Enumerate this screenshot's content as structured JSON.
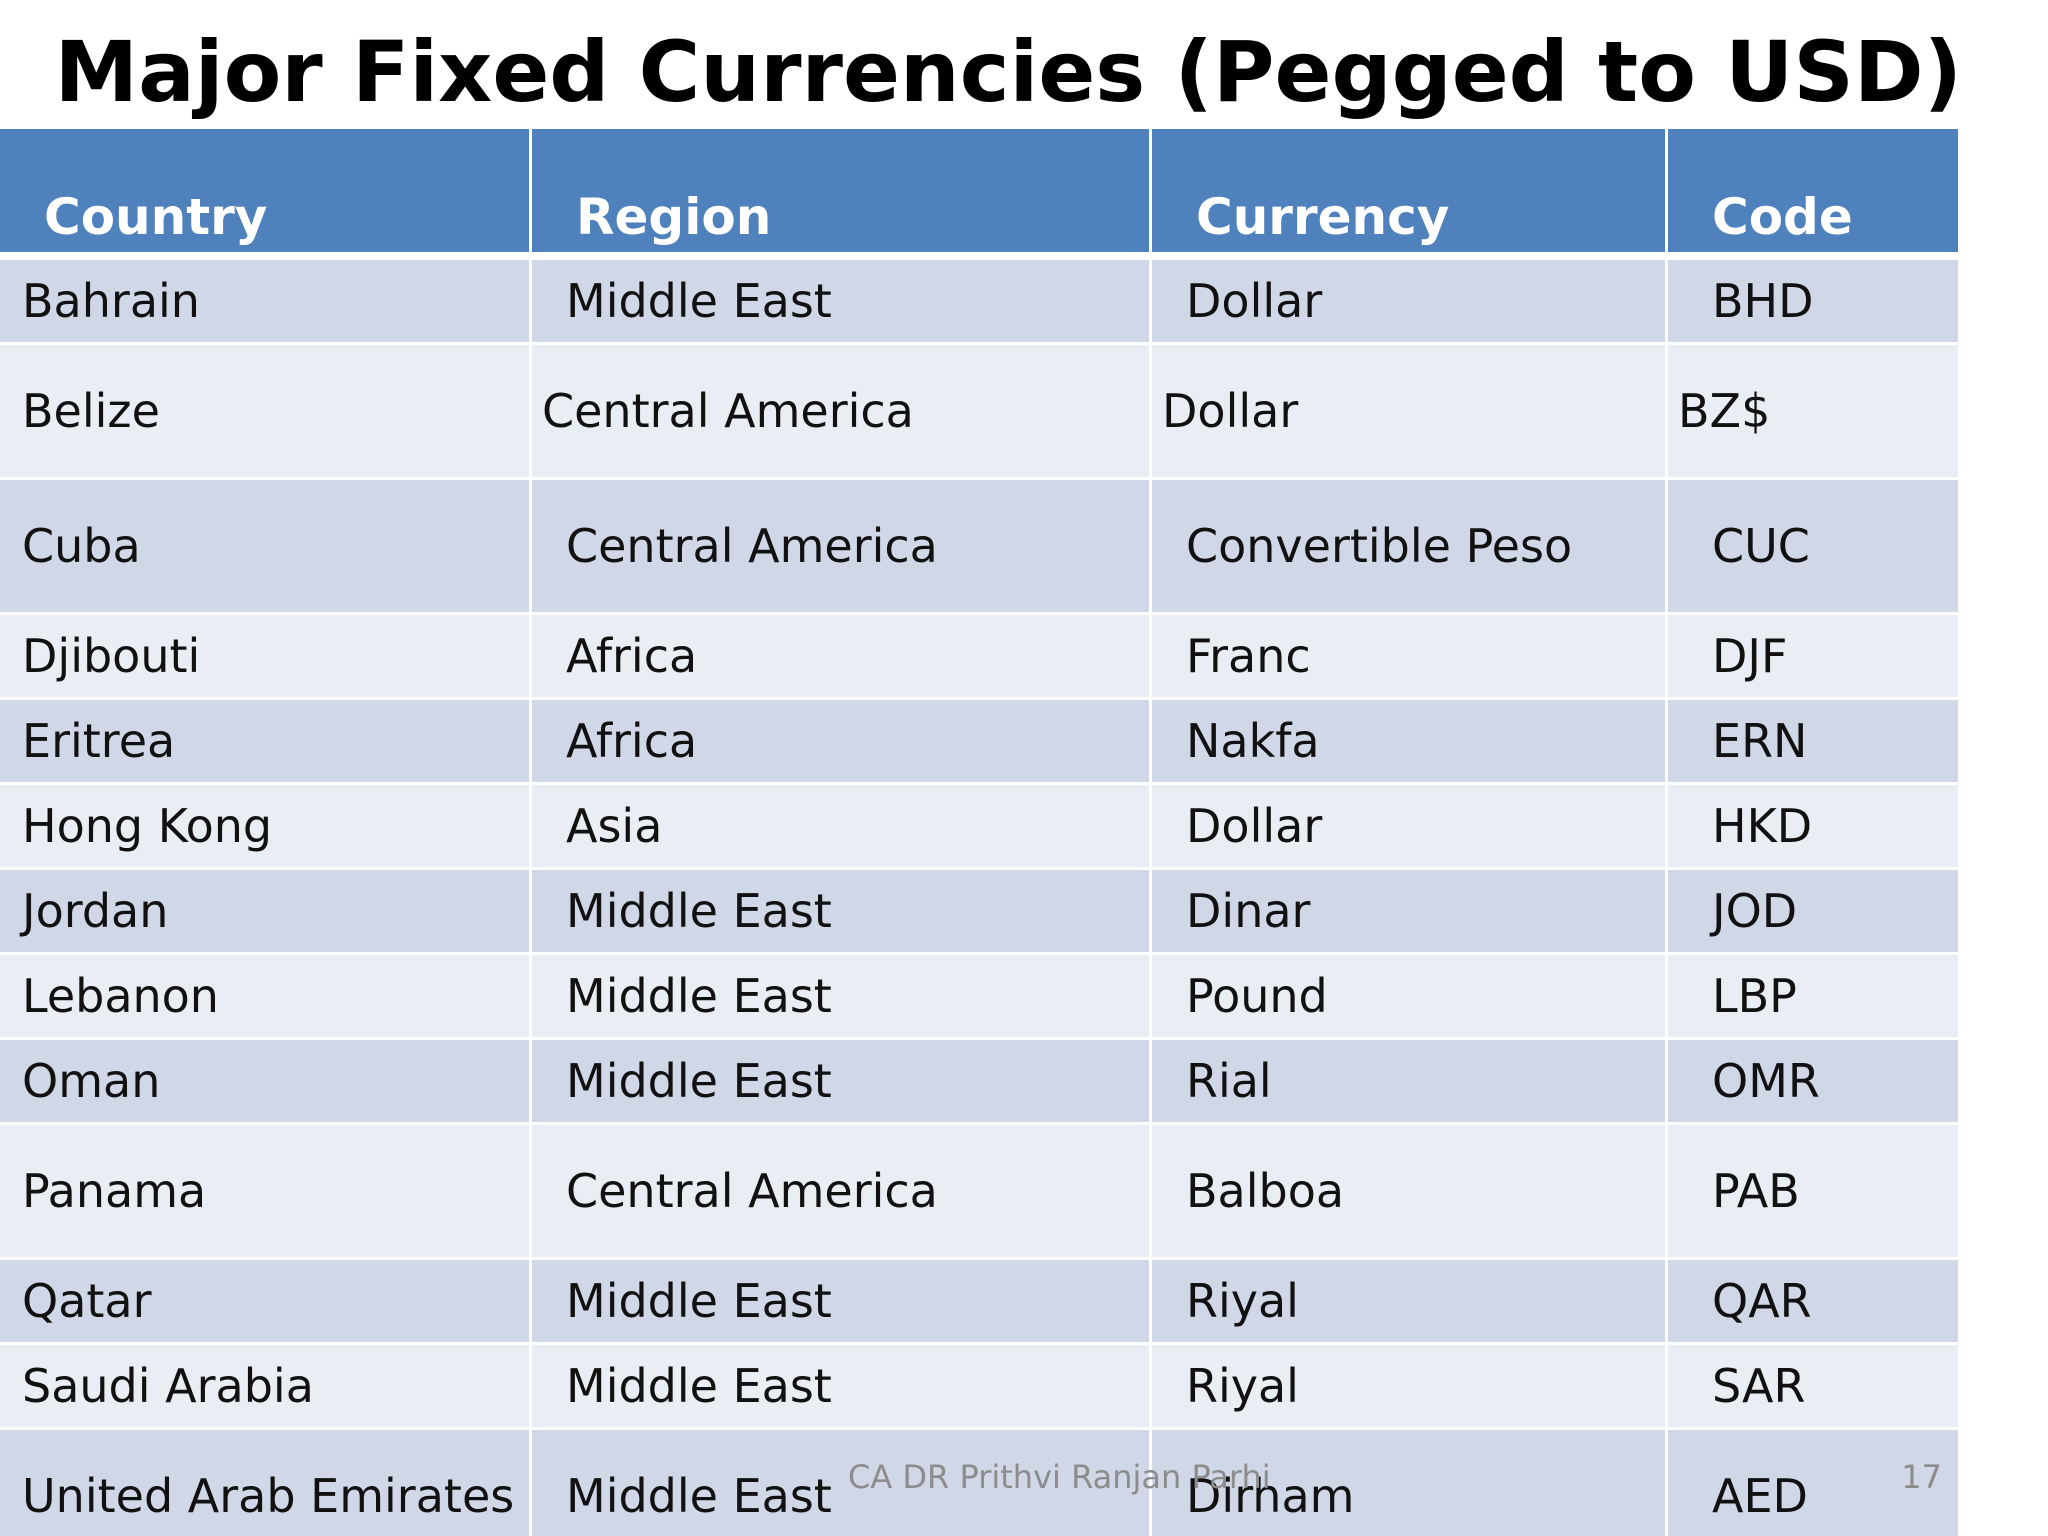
{
  "title": "Major Fixed Currencies (Pegged to USD)",
  "colors": {
    "header_bg": "#4f81bd",
    "row_odd_bg": "#d0d8e8",
    "row_even_bg": "#e9edf4",
    "footer_text": "#8c8c8c"
  },
  "table": {
    "headers": [
      "Country",
      "Region",
      "Currency",
      "Code"
    ],
    "rows": [
      [
        "Bahrain",
        "Middle East",
        "Dollar",
        "BHD"
      ],
      [
        "Belize",
        "Central America",
        "Dollar",
        "BZ$"
      ],
      [
        "Cuba",
        "Central America",
        "Convertible Peso",
        "CUC"
      ],
      [
        "Djibouti",
        "Africa",
        "Franc",
        "DJF"
      ],
      [
        "Eritrea",
        "Africa",
        "Nakfa",
        "ERN"
      ],
      [
        "Hong Kong",
        "Asia",
        "Dollar",
        "HKD"
      ],
      [
        "Jordan",
        "Middle East",
        "Dinar",
        "JOD"
      ],
      [
        "Lebanon",
        "Middle East",
        "Pound",
        "LBP"
      ],
      [
        "Oman",
        "Middle East",
        "Rial",
        "OMR"
      ],
      [
        "Panama",
        "Central America",
        "Balboa",
        "PAB"
      ],
      [
        "Qatar",
        "Middle East",
        "Riyal",
        "QAR"
      ],
      [
        "Saudi Arabia",
        "Middle East",
        "Riyal",
        "SAR"
      ],
      [
        "United Arab Emirates",
        "Middle East",
        "Dirham",
        "AED"
      ]
    ]
  },
  "footer": {
    "author": "CA DR Prithvi Ranjan Parhi",
    "page_number": "17"
  }
}
